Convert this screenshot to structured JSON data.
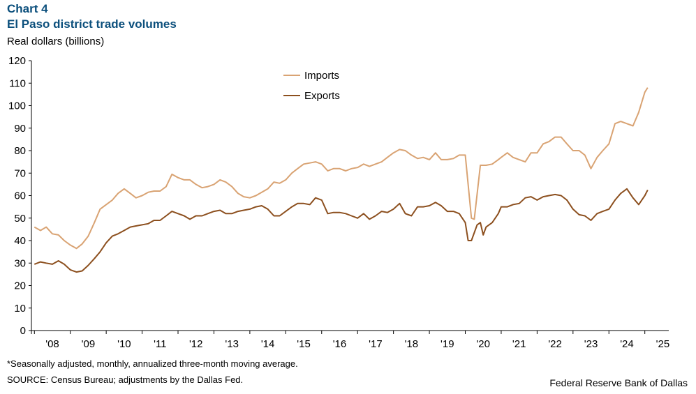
{
  "header": {
    "chart_number": "Chart 4",
    "title": "El Paso district trade volumes",
    "unit": "Real dollars (billions)"
  },
  "footer": {
    "note": "*Seasonally adjusted, monthly, annualized three-month moving average.",
    "source": "SOURCE: Census Bureau; adjustments by the Dallas Fed.",
    "credit": "Federal Reserve Bank of Dallas"
  },
  "colors": {
    "imports": "#d9a373",
    "exports": "#8c4f1e",
    "axis": "#000000"
  },
  "chart_data": {
    "type": "line",
    "title": "El Paso district trade volumes",
    "ylabel": "Real dollars (billions)",
    "xlabel": "",
    "ylim": [
      0,
      120
    ],
    "yticks": [
      0,
      10,
      20,
      30,
      40,
      50,
      60,
      70,
      80,
      90,
      100,
      110,
      120
    ],
    "xlim": [
      2007.917,
      2025.667
    ],
    "xticks": [
      "'08",
      "'09",
      "'10",
      "'11",
      "'12",
      "'13",
      "'14",
      "'15",
      "'16",
      "'17",
      "'18",
      "'19",
      "'20",
      "'21",
      "'22",
      "'23",
      "'24",
      "'25"
    ],
    "legend": {
      "position": "top-center",
      "entries": [
        "Imports",
        "Exports"
      ]
    },
    "series": [
      {
        "name": "Imports",
        "points": [
          [
            2008.0,
            46
          ],
          [
            2008.17,
            44.5
          ],
          [
            2008.33,
            46
          ],
          [
            2008.5,
            43
          ],
          [
            2008.67,
            42.5
          ],
          [
            2008.83,
            40
          ],
          [
            2009.0,
            38
          ],
          [
            2009.17,
            36.5
          ],
          [
            2009.33,
            38.5
          ],
          [
            2009.5,
            42
          ],
          [
            2009.67,
            48
          ],
          [
            2009.83,
            54
          ],
          [
            2010.0,
            56
          ],
          [
            2010.17,
            58
          ],
          [
            2010.33,
            61
          ],
          [
            2010.5,
            63
          ],
          [
            2010.67,
            61
          ],
          [
            2010.83,
            59
          ],
          [
            2011.0,
            60
          ],
          [
            2011.17,
            61.5
          ],
          [
            2011.33,
            62
          ],
          [
            2011.5,
            62
          ],
          [
            2011.67,
            64
          ],
          [
            2011.83,
            69.5
          ],
          [
            2012.0,
            68
          ],
          [
            2012.17,
            67
          ],
          [
            2012.33,
            67
          ],
          [
            2012.5,
            65
          ],
          [
            2012.67,
            63.5
          ],
          [
            2012.83,
            64
          ],
          [
            2013.0,
            65
          ],
          [
            2013.17,
            67
          ],
          [
            2013.33,
            66
          ],
          [
            2013.5,
            64
          ],
          [
            2013.67,
            61
          ],
          [
            2013.83,
            59.5
          ],
          [
            2014.0,
            59
          ],
          [
            2014.17,
            60
          ],
          [
            2014.33,
            61.5
          ],
          [
            2014.5,
            63
          ],
          [
            2014.67,
            66
          ],
          [
            2014.83,
            65.5
          ],
          [
            2015.0,
            67
          ],
          [
            2015.17,
            70
          ],
          [
            2015.33,
            72
          ],
          [
            2015.5,
            74
          ],
          [
            2015.67,
            74.5
          ],
          [
            2015.83,
            75
          ],
          [
            2016.0,
            74
          ],
          [
            2016.17,
            71
          ],
          [
            2016.33,
            72
          ],
          [
            2016.5,
            72
          ],
          [
            2016.67,
            71
          ],
          [
            2016.83,
            72
          ],
          [
            2017.0,
            72.5
          ],
          [
            2017.17,
            74
          ],
          [
            2017.33,
            73
          ],
          [
            2017.5,
            74
          ],
          [
            2017.67,
            75
          ],
          [
            2017.83,
            77
          ],
          [
            2018.0,
            79
          ],
          [
            2018.17,
            80.5
          ],
          [
            2018.33,
            80
          ],
          [
            2018.5,
            78
          ],
          [
            2018.67,
            76.5
          ],
          [
            2018.83,
            77
          ],
          [
            2019.0,
            76
          ],
          [
            2019.17,
            79
          ],
          [
            2019.33,
            76
          ],
          [
            2019.5,
            76
          ],
          [
            2019.67,
            76.5
          ],
          [
            2019.83,
            78
          ],
          [
            2020.0,
            78
          ],
          [
            2020.17,
            50
          ],
          [
            2020.25,
            49.5
          ],
          [
            2020.42,
            73.5
          ],
          [
            2020.58,
            73.5
          ],
          [
            2020.75,
            74
          ],
          [
            2020.92,
            76
          ],
          [
            2021.0,
            77
          ],
          [
            2021.17,
            79
          ],
          [
            2021.33,
            77
          ],
          [
            2021.5,
            76
          ],
          [
            2021.67,
            75
          ],
          [
            2021.83,
            79
          ],
          [
            2022.0,
            79
          ],
          [
            2022.17,
            83
          ],
          [
            2022.33,
            84
          ],
          [
            2022.5,
            86
          ],
          [
            2022.67,
            86
          ],
          [
            2022.83,
            83
          ],
          [
            2023.0,
            80
          ],
          [
            2023.17,
            80
          ],
          [
            2023.33,
            78
          ],
          [
            2023.5,
            72
          ],
          [
            2023.67,
            77
          ],
          [
            2023.83,
            80
          ],
          [
            2024.0,
            83
          ],
          [
            2024.17,
            92
          ],
          [
            2024.33,
            93
          ],
          [
            2024.5,
            92
          ],
          [
            2024.67,
            91
          ],
          [
            2024.83,
            97
          ],
          [
            2025.0,
            106
          ],
          [
            2025.08,
            108
          ]
        ]
      },
      {
        "name": "Exports",
        "points": [
          [
            2008.0,
            29.5
          ],
          [
            2008.17,
            30.5
          ],
          [
            2008.33,
            30
          ],
          [
            2008.5,
            29.5
          ],
          [
            2008.67,
            31
          ],
          [
            2008.83,
            29.5
          ],
          [
            2009.0,
            27
          ],
          [
            2009.17,
            26
          ],
          [
            2009.33,
            26.5
          ],
          [
            2009.5,
            29
          ],
          [
            2009.67,
            32
          ],
          [
            2009.83,
            35
          ],
          [
            2010.0,
            39
          ],
          [
            2010.17,
            42
          ],
          [
            2010.33,
            43
          ],
          [
            2010.5,
            44.5
          ],
          [
            2010.67,
            46
          ],
          [
            2010.83,
            46.5
          ],
          [
            2011.0,
            47
          ],
          [
            2011.17,
            47.5
          ],
          [
            2011.33,
            49
          ],
          [
            2011.5,
            49
          ],
          [
            2011.67,
            51
          ],
          [
            2011.83,
            53
          ],
          [
            2012.0,
            52
          ],
          [
            2012.17,
            51
          ],
          [
            2012.33,
            49.5
          ],
          [
            2012.5,
            51
          ],
          [
            2012.67,
            51
          ],
          [
            2012.83,
            52
          ],
          [
            2013.0,
            53
          ],
          [
            2013.17,
            53.5
          ],
          [
            2013.33,
            52
          ],
          [
            2013.5,
            52
          ],
          [
            2013.67,
            53
          ],
          [
            2013.83,
            53.5
          ],
          [
            2014.0,
            54
          ],
          [
            2014.17,
            55
          ],
          [
            2014.33,
            55.5
          ],
          [
            2014.5,
            54
          ],
          [
            2014.67,
            51
          ],
          [
            2014.83,
            51
          ],
          [
            2015.0,
            53
          ],
          [
            2015.17,
            55
          ],
          [
            2015.33,
            56.5
          ],
          [
            2015.5,
            56.5
          ],
          [
            2015.67,
            56
          ],
          [
            2015.83,
            59
          ],
          [
            2016.0,
            58
          ],
          [
            2016.17,
            52
          ],
          [
            2016.33,
            52.5
          ],
          [
            2016.5,
            52.5
          ],
          [
            2016.67,
            52
          ],
          [
            2016.83,
            51
          ],
          [
            2017.0,
            50
          ],
          [
            2017.17,
            52
          ],
          [
            2017.33,
            49.5
          ],
          [
            2017.5,
            51
          ],
          [
            2017.67,
            53
          ],
          [
            2017.83,
            52.5
          ],
          [
            2018.0,
            54
          ],
          [
            2018.17,
            56.5
          ],
          [
            2018.33,
            52
          ],
          [
            2018.5,
            51
          ],
          [
            2018.67,
            55
          ],
          [
            2018.83,
            55
          ],
          [
            2019.0,
            55.5
          ],
          [
            2019.17,
            57
          ],
          [
            2019.33,
            55.5
          ],
          [
            2019.5,
            53
          ],
          [
            2019.67,
            53
          ],
          [
            2019.83,
            52
          ],
          [
            2020.0,
            48
          ],
          [
            2020.08,
            40
          ],
          [
            2020.17,
            40
          ],
          [
            2020.33,
            47
          ],
          [
            2020.42,
            48
          ],
          [
            2020.5,
            42.5
          ],
          [
            2020.58,
            46
          ],
          [
            2020.75,
            48
          ],
          [
            2020.92,
            52
          ],
          [
            2021.0,
            55
          ],
          [
            2021.17,
            55
          ],
          [
            2021.33,
            56
          ],
          [
            2021.5,
            56.5
          ],
          [
            2021.67,
            59
          ],
          [
            2021.83,
            59.5
          ],
          [
            2022.0,
            58
          ],
          [
            2022.17,
            59.5
          ],
          [
            2022.33,
            60
          ],
          [
            2022.5,
            60.5
          ],
          [
            2022.67,
            60
          ],
          [
            2022.83,
            58
          ],
          [
            2023.0,
            54
          ],
          [
            2023.17,
            51.5
          ],
          [
            2023.33,
            51
          ],
          [
            2023.5,
            49
          ],
          [
            2023.67,
            52
          ],
          [
            2023.83,
            53
          ],
          [
            2024.0,
            54
          ],
          [
            2024.17,
            58
          ],
          [
            2024.33,
            61
          ],
          [
            2024.5,
            63
          ],
          [
            2024.67,
            59
          ],
          [
            2024.83,
            56
          ],
          [
            2025.0,
            60
          ],
          [
            2025.08,
            62.5
          ]
        ]
      }
    ]
  }
}
